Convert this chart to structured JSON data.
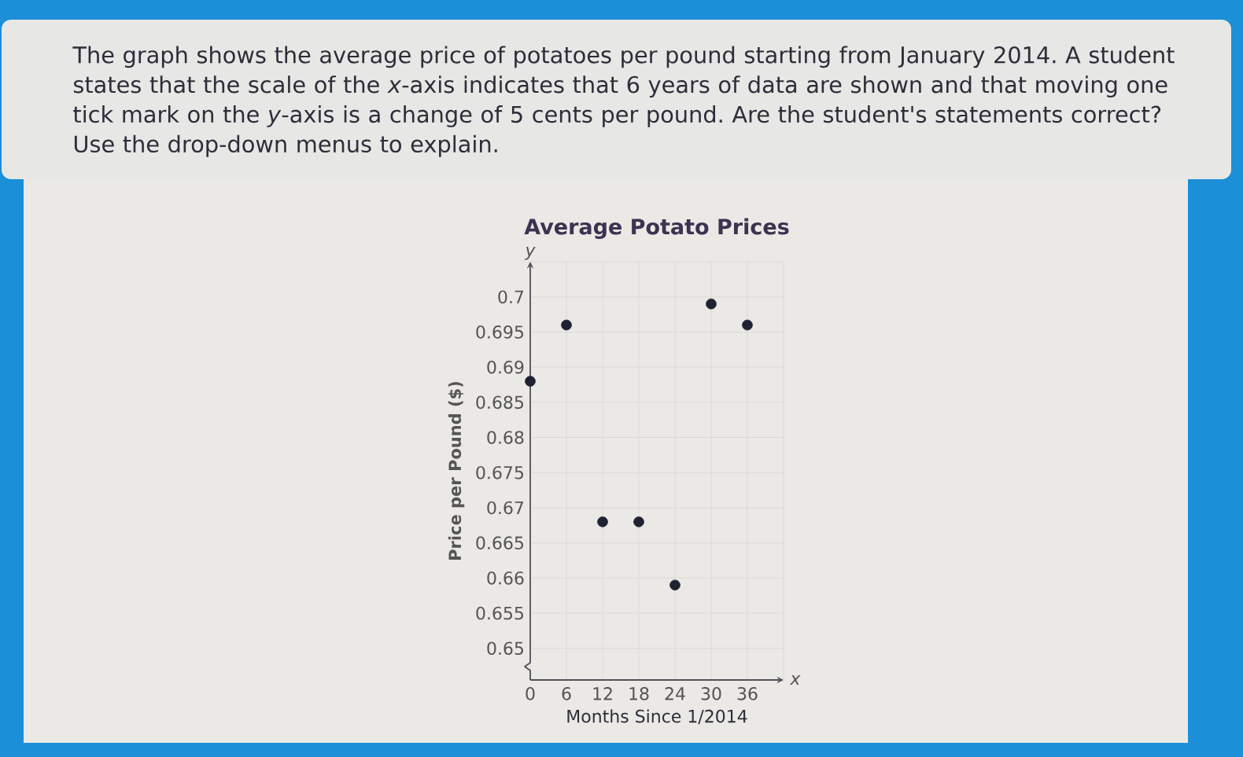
{
  "chart_data": {
    "type": "scatter",
    "title": "Average Potato Prices",
    "xlabel": "Months Since 1/2014",
    "ylabel": "Price per Pound ($)",
    "annotations": [
      "The graph shows the average price of potatoes per pound starting from January 2014. A student states that the scale of the *x*-axis indicates that 6 years of data are shown and that moving one tick mark on the *y*-axis is a change of 5 cents per pound. Are the student's statements correct? Use the drop-down menus to explain.",
      "y",
      "x"
    ],
    "x": [
      0,
      6,
      12,
      18,
      24,
      30,
      36
    ],
    "values": [
      0.688,
      0.696,
      0.668,
      0.668,
      0.659,
      0.699,
      0.696
    ],
    "color": "#1f2233",
    "xlim": [
      0,
      42
    ],
    "ylim": [
      0.6455,
      0.705
    ],
    "xticks": [
      0,
      6,
      12,
      18,
      24,
      30,
      36
    ],
    "yticks": [
      0.65,
      0.655,
      0.66,
      0.665,
      0.67,
      0.675,
      0.68,
      0.685,
      0.69,
      0.695,
      0.7
    ],
    "grid": true,
    "marker": "circle"
  }
}
